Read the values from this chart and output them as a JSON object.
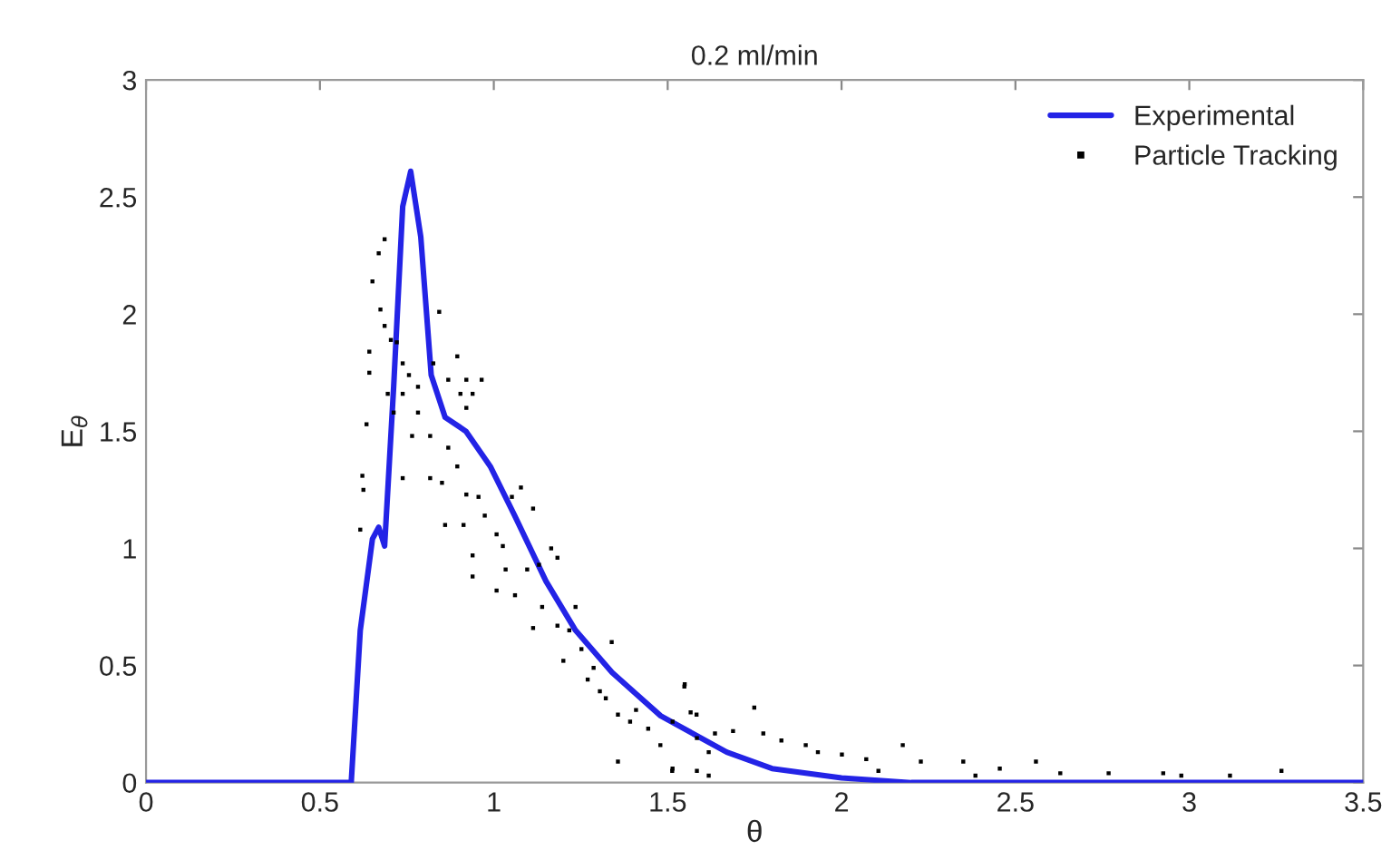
{
  "chart_data": {
    "type": "line",
    "title": "0.2 ml/min",
    "xlabel": "θ",
    "ylabel": "E$_{θ}$",
    "xlim": [
      0,
      3.5
    ],
    "ylim": [
      0,
      3
    ],
    "xticks": [
      0,
      0.5,
      1,
      1.5,
      2,
      2.5,
      3,
      3.5
    ],
    "yticks": [
      0,
      0.5,
      1,
      1.5,
      2,
      2.5,
      3
    ],
    "grid": false,
    "legend": "top right",
    "series": [
      {
        "name": "Experimental",
        "color": "#2323e6",
        "marker": "none",
        "line_style": "solid",
        "x": [
          0,
          0.59,
          0.616,
          0.651,
          0.669,
          0.686,
          0.712,
          0.738,
          0.761,
          0.79,
          0.82,
          0.86,
          0.92,
          0.99,
          1.06,
          1.15,
          1.235,
          1.34,
          1.48,
          1.67,
          1.8,
          2.0,
          2.2,
          3.5
        ],
        "values": [
          0,
          0,
          0.65,
          1.04,
          1.09,
          1.01,
          1.69,
          2.46,
          2.61,
          2.33,
          1.74,
          1.56,
          1.5,
          1.35,
          1.14,
          0.86,
          0.65,
          0.47,
          0.285,
          0.13,
          0.06,
          0.02,
          0,
          0
        ]
      },
      {
        "name": "Particle Tracking",
        "type": "scatter",
        "color": "#000000",
        "marker": "square",
        "x": [
          0.686,
          0.669,
          0.651,
          0.674,
          0.686,
          0.642,
          0.642,
          0.634,
          0.622,
          0.625,
          0.616,
          0.704,
          0.721,
          0.738,
          0.756,
          0.782,
          0.738,
          0.695,
          0.712,
          0.782,
          0.765,
          0.817,
          0.738,
          0.843,
          0.826,
          0.895,
          0.869,
          0.921,
          0.965,
          0.904,
          0.939,
          0.921,
          0.869,
          0.817,
          0.851,
          0.895,
          0.921,
          0.956,
          0.86,
          0.913,
          0.974,
          0.939,
          1.008,
          1.026,
          1.052,
          1.078,
          1.113,
          1.034,
          0.939,
          1.008,
          1.061,
          1.096,
          1.13,
          1.165,
          1.183,
          1.139,
          1.183,
          1.113,
          1.217,
          1.235,
          1.2,
          1.252,
          1.287,
          1.27,
          1.339,
          1.305,
          1.322,
          1.357,
          1.392,
          1.409,
          1.444,
          1.479,
          1.514,
          1.549,
          1.566,
          1.584,
          1.618,
          1.357,
          1.514,
          1.584,
          1.548,
          1.749,
          1.583,
          1.636,
          1.688,
          1.775,
          1.827,
          1.897,
          1.932,
          2.001,
          2.071,
          2.176,
          2.228,
          2.35,
          2.455,
          2.559,
          2.629,
          2.768,
          2.925,
          3.117,
          3.265,
          1.513,
          1.618,
          2.106,
          2.385,
          2.977
        ],
        "values": [
          2.32,
          2.26,
          2.14,
          2.02,
          1.95,
          1.84,
          1.75,
          1.53,
          1.31,
          1.25,
          1.08,
          1.89,
          1.88,
          1.79,
          1.74,
          1.69,
          1.66,
          1.66,
          1.58,
          1.58,
          1.48,
          1.48,
          1.3,
          2.01,
          1.79,
          1.82,
          1.72,
          1.72,
          1.72,
          1.66,
          1.66,
          1.6,
          1.43,
          1.3,
          1.28,
          1.35,
          1.23,
          1.22,
          1.1,
          1.1,
          1.14,
          0.97,
          1.06,
          1.01,
          1.22,
          1.26,
          1.17,
          0.91,
          0.88,
          0.82,
          0.8,
          0.91,
          0.93,
          1.0,
          0.96,
          0.75,
          0.67,
          0.66,
          0.65,
          0.75,
          0.52,
          0.57,
          0.49,
          0.44,
          0.6,
          0.39,
          0.36,
          0.29,
          0.26,
          0.31,
          0.23,
          0.16,
          0.26,
          0.42,
          0.3,
          0.19,
          0.13,
          0.09,
          0.06,
          0.05,
          0.41,
          0.32,
          0.29,
          0.21,
          0.22,
          0.21,
          0.18,
          0.16,
          0.13,
          0.12,
          0.1,
          0.16,
          0.09,
          0.09,
          0.06,
          0.09,
          0.04,
          0.04,
          0.04,
          0.03,
          0.05,
          0.05,
          0.03,
          0.05,
          0.03,
          0.03
        ]
      }
    ]
  }
}
